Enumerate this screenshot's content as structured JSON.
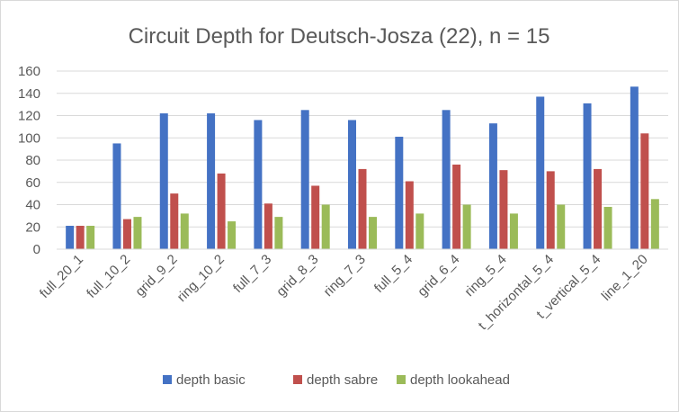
{
  "chart_data": {
    "type": "bar",
    "title": "Circuit Depth for Deutsch-Josza (22), n = 15",
    "xlabel": "",
    "ylabel": "",
    "ylim": [
      0,
      160
    ],
    "yticks": [
      0,
      20,
      40,
      60,
      80,
      100,
      120,
      140,
      160
    ],
    "grid": true,
    "legend_position": "bottom",
    "categories": [
      "full_20_1",
      "full_10_2",
      "grid_9_2",
      "ring_10_2",
      "full_7_3",
      "grid_8_3",
      "ring_7_3",
      "full_5_4",
      "grid_6_4",
      "ring_5_4",
      "t_horizontal_5_4",
      "t_vertical_5_4",
      "line_1_20"
    ],
    "series": [
      {
        "name": "depth basic",
        "color": "#4472c4",
        "values": [
          21,
          95,
          122,
          122,
          116,
          125,
          116,
          101,
          125,
          113,
          137,
          131,
          146
        ]
      },
      {
        "name": "depth sabre",
        "color": "#c0504d",
        "values": [
          21,
          27,
          50,
          68,
          41,
          57,
          72,
          61,
          76,
          71,
          70,
          72,
          104
        ]
      },
      {
        "name": "depth lookahead",
        "color": "#9bbb59",
        "values": [
          21,
          29,
          32,
          25,
          29,
          40,
          29,
          32,
          40,
          32,
          40,
          38,
          45
        ]
      }
    ]
  }
}
